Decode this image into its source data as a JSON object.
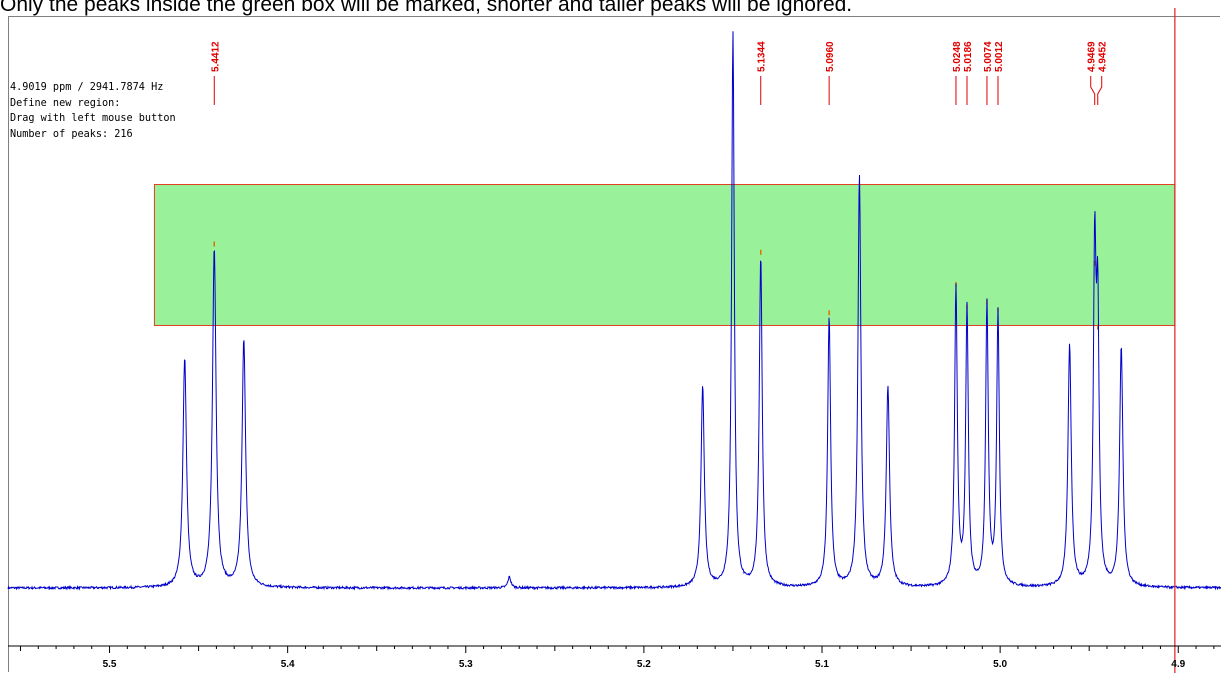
{
  "caption": "Only the peaks inside the green box will be marked, shorter and taller peaks will be ignored.",
  "info": {
    "cursor": "4.9019 ppm / 2941.7874 Hz",
    "line2": "Define new region:",
    "line3": "Drag with left mouse button",
    "line4": "Number of peaks: 216"
  },
  "colors": {
    "spectrum": "#0000cc",
    "region_fill": "#99f299",
    "region_border": "#e04020",
    "cursor_line": "#e02020",
    "peak_label": "#e00000",
    "axis": "#000000"
  },
  "chart_data": {
    "type": "line",
    "title": "",
    "xlabel": "",
    "ylabel": "",
    "x_unit": "ppm",
    "x_reversed": true,
    "xlim": [
      5.557,
      4.876
    ],
    "x_ticks": [
      5.5,
      5.4,
      5.3,
      5.2,
      5.1,
      5.0,
      4.9
    ],
    "x_tick_labels": [
      "5.5",
      "5.4",
      "5.3",
      "5.2",
      "5.1",
      "5.0",
      "4.9"
    ],
    "cursor_ppm": 4.9019,
    "threshold_region": {
      "x_from": 5.4748,
      "x_to": 4.9019,
      "y_low": 0.473,
      "y_high": 0.727
    },
    "baseline": 0.0,
    "peaks": [
      {
        "ppm": 5.4578,
        "height": 0.412,
        "width": 0.0012
      },
      {
        "ppm": 5.4412,
        "height": 0.61,
        "width": 0.0012
      },
      {
        "ppm": 5.4246,
        "height": 0.447,
        "width": 0.0012
      },
      {
        "ppm": 5.2755,
        "height": 0.02,
        "width": 0.001
      },
      {
        "ppm": 5.167,
        "height": 0.362,
        "width": 0.0011
      },
      {
        "ppm": 5.15,
        "height": 1.0,
        "width": 0.0009
      },
      {
        "ppm": 5.1344,
        "height": 0.595,
        "width": 0.001
      },
      {
        "ppm": 5.096,
        "height": 0.486,
        "width": 0.001
      },
      {
        "ppm": 5.079,
        "height": 0.741,
        "width": 0.001
      },
      {
        "ppm": 5.063,
        "height": 0.361,
        "width": 0.0011
      },
      {
        "ppm": 5.0248,
        "height": 0.537,
        "width": 0.0009
      },
      {
        "ppm": 5.0186,
        "height": 0.497,
        "width": 0.0009
      },
      {
        "ppm": 5.0074,
        "height": 0.505,
        "width": 0.0009
      },
      {
        "ppm": 5.0012,
        "height": 0.491,
        "width": 0.0009
      },
      {
        "ppm": 4.961,
        "height": 0.435,
        "width": 0.0011
      },
      {
        "ppm": 4.9469,
        "height": 0.575,
        "width": 0.0009
      },
      {
        "ppm": 4.9452,
        "height": 0.46,
        "width": 0.0009
      },
      {
        "ppm": 4.932,
        "height": 0.432,
        "width": 0.0011
      }
    ],
    "peak_labels": [
      {
        "text": "5.4412",
        "ppm": 5.4412
      },
      {
        "text": "5.1344",
        "ppm": 5.1344
      },
      {
        "text": "5.0960",
        "ppm": 5.096
      },
      {
        "text": "5.0248",
        "ppm": 5.0248
      },
      {
        "text": "5.0186",
        "ppm": 5.0186
      },
      {
        "text": "5.0074",
        "ppm": 5.0074
      },
      {
        "text": "5.0012",
        "ppm": 5.0012
      },
      {
        "text": "4.9469",
        "ppm": 4.9469
      },
      {
        "text": "4.9452",
        "ppm": 4.9452
      }
    ]
  }
}
